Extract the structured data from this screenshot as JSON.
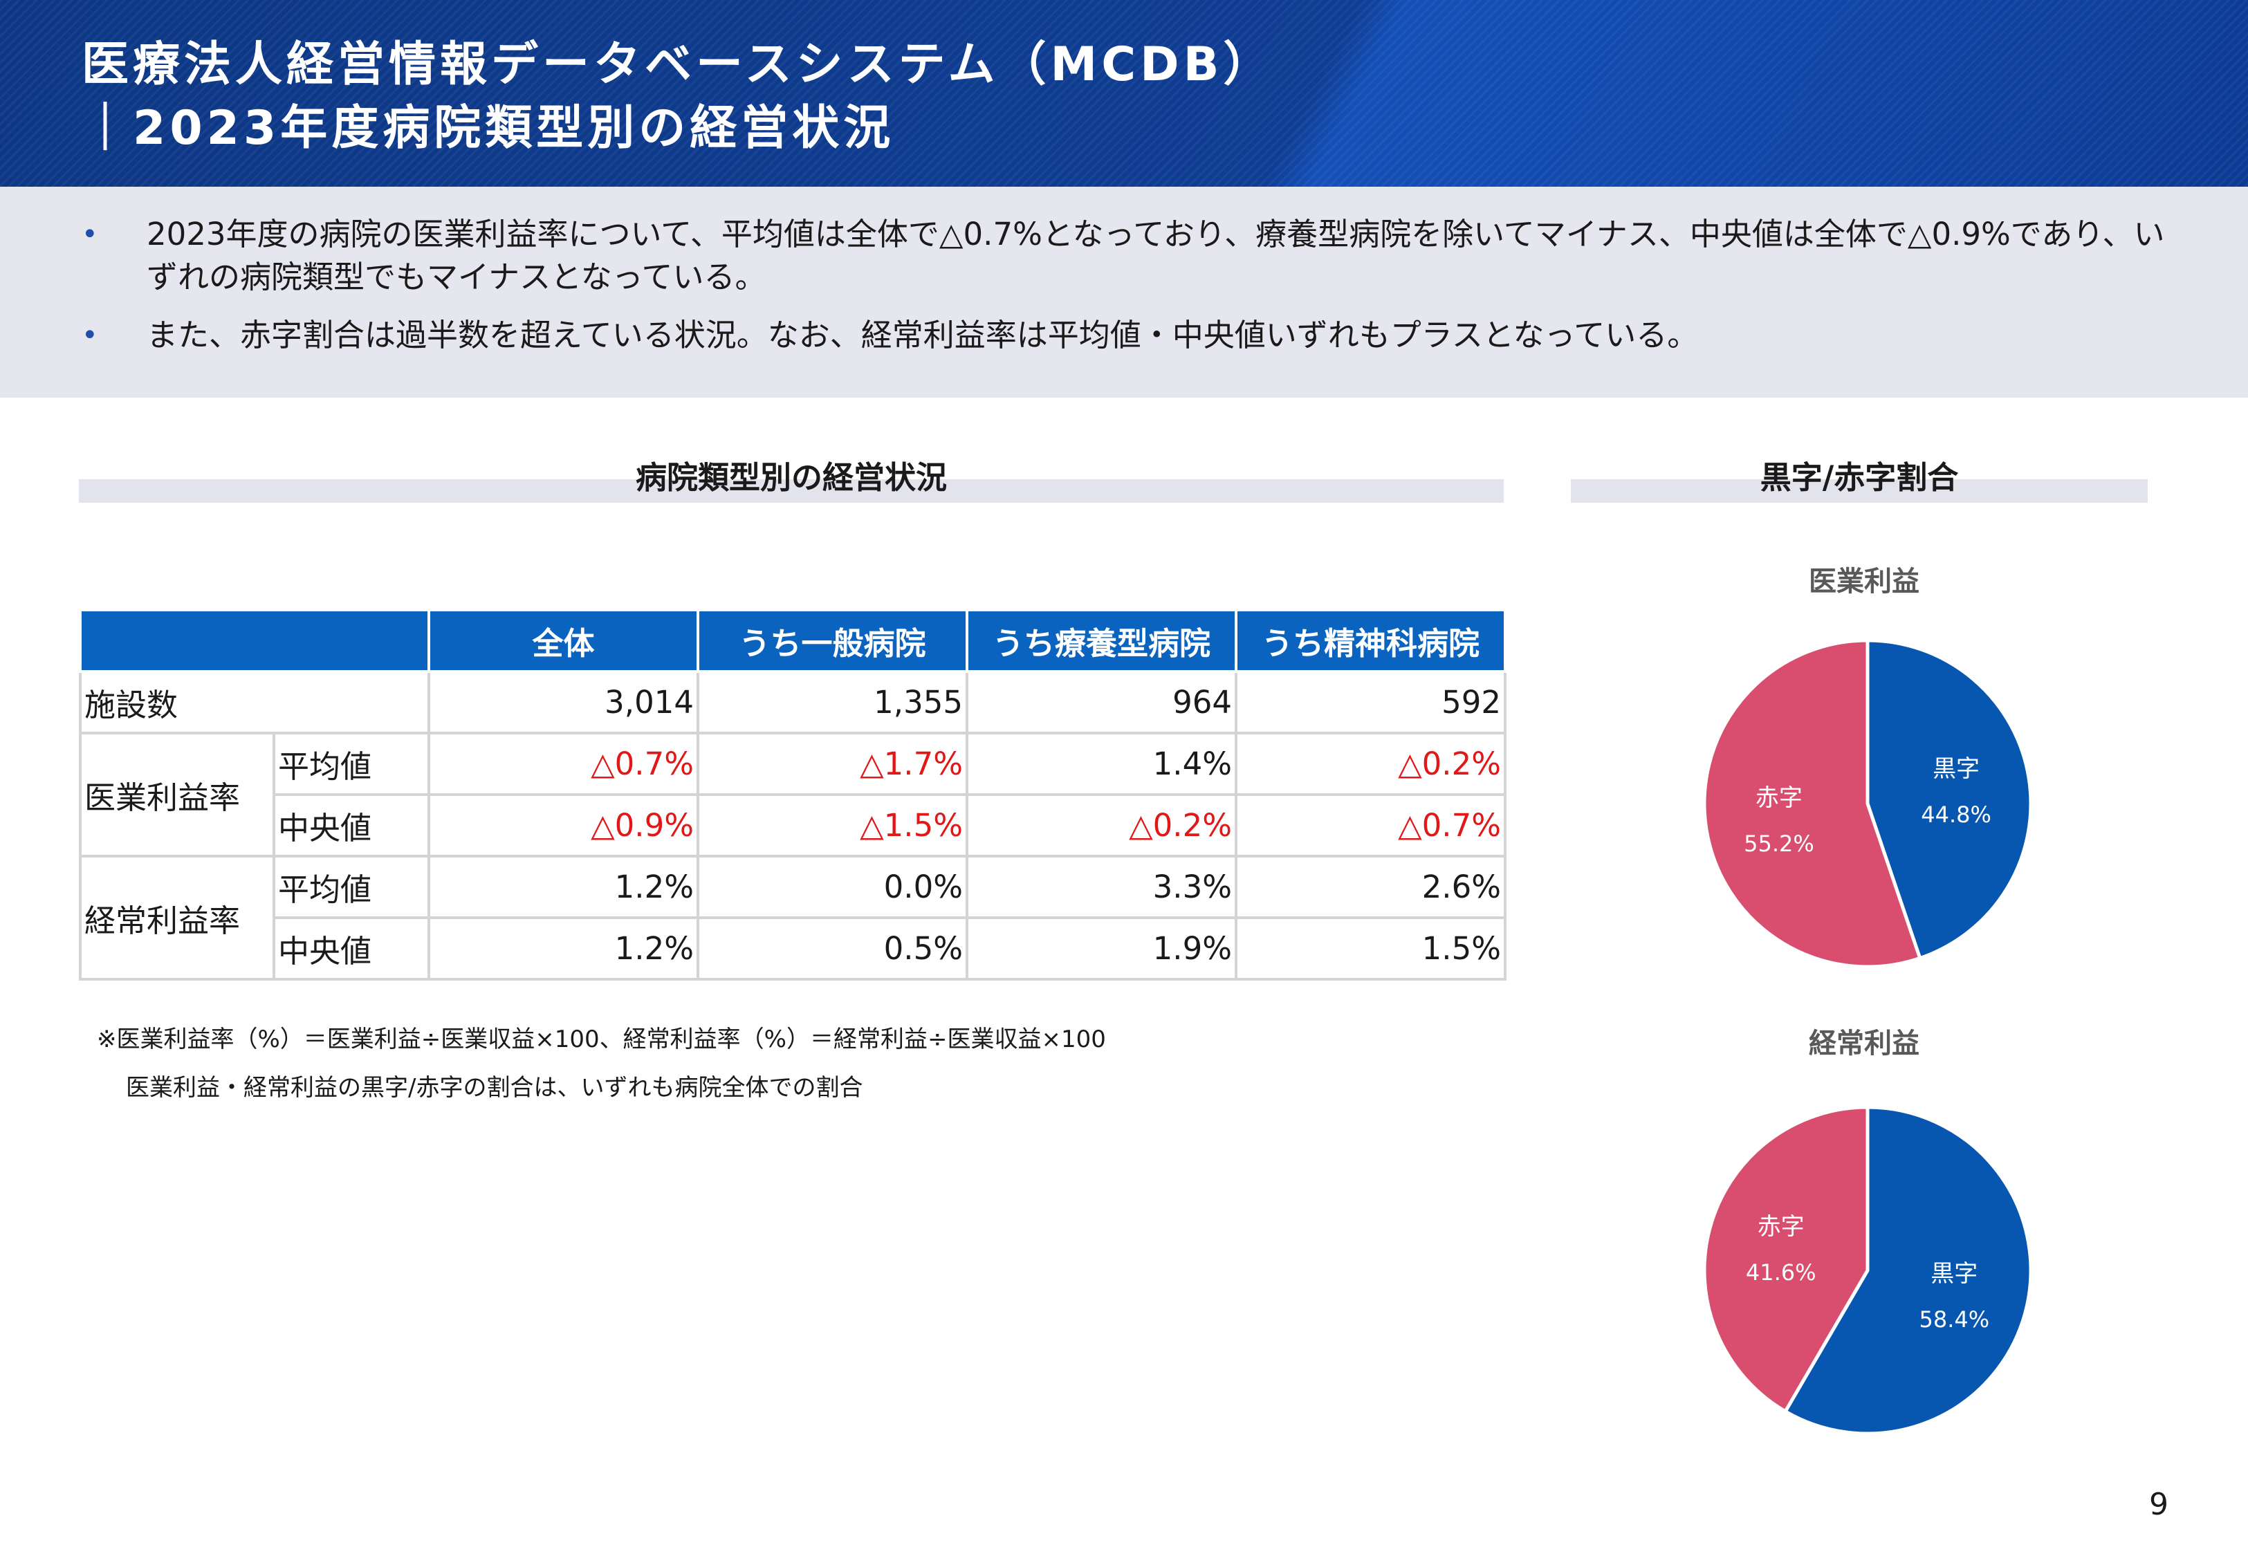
{
  "header": {
    "title_line1": "医療法人経営情報データベースシステム（MCDB）",
    "title_line2": "｜2023年度病院類型別の経営状況"
  },
  "summary": {
    "bullets": [
      "2023年度の病院の医業利益率について、平均値は全体で△0.7%となっており、療養型病院を除いてマイナス、中央値は全体で△0.9%であり、いずれの病院類型でもマイナスとなっている。",
      "また、赤字割合は過半数を超えている状況。なお、経常利益率は平均値・中央値いずれもプラスとなっている。"
    ]
  },
  "table_section": {
    "title": "病院類型別の経営状況"
  },
  "table": {
    "headers": [
      "",
      "全体",
      "うち一般病院",
      "うち療養型病院",
      "うち精神科病院"
    ],
    "facility_label": "施設数",
    "facility_values": [
      "3,014",
      "1,355",
      "964",
      "592"
    ],
    "medical_label": "医業利益率",
    "ordinary_label": "経常利益率",
    "avg_label": "平均値",
    "median_label": "中央値",
    "medical_avg": [
      "△0.7%",
      "△1.7%",
      "1.4%",
      "△0.2%"
    ],
    "medical_median": [
      "△0.9%",
      "△1.5%",
      "△0.2%",
      "△0.7%"
    ],
    "ordinary_avg": [
      "1.2%",
      "0.0%",
      "3.3%",
      "2.6%"
    ],
    "ordinary_median": [
      "1.2%",
      "0.5%",
      "1.9%",
      "1.5%"
    ],
    "negative_color": "#e01818"
  },
  "notes": [
    "※医業利益率（%）＝医業利益÷医業収益×100、経常利益率（%）＝経常利益÷医業収益×100",
    "医業利益・経常利益の黒字/赤字の割合は、いずれも病院全体での割合"
  ],
  "pie_section": {
    "title": "黒字/赤字割合"
  },
  "chart_data": [
    {
      "type": "pie",
      "title": "医業利益",
      "labels": [
        "黒字",
        "赤字"
      ],
      "values": [
        44.8,
        55.2
      ],
      "value_labels": [
        "44.8%",
        "55.2%"
      ],
      "colors": [
        "#0757b0",
        "#d94e6e"
      ]
    },
    {
      "type": "pie",
      "title": "経常利益",
      "labels": [
        "黒字",
        "赤字"
      ],
      "values": [
        58.4,
        41.6
      ],
      "value_labels": [
        "58.4%",
        "41.6%"
      ],
      "colors": [
        "#0757b0",
        "#d94e6e"
      ]
    }
  ],
  "page_number": "9"
}
